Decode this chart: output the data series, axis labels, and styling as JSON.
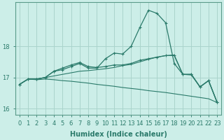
{
  "xlabel": "Humidex (Indice chaleur)",
  "bg_color": "#cceee8",
  "line_color": "#2a7a6a",
  "grid_color": "#aad4cc",
  "xlim": [
    -0.5,
    23.5
  ],
  "ylim": [
    15.8,
    19.4
  ],
  "yticks": [
    16,
    17,
    18
  ],
  "xticks": [
    0,
    1,
    2,
    3,
    4,
    5,
    6,
    7,
    8,
    9,
    10,
    11,
    12,
    13,
    14,
    15,
    16,
    17,
    18,
    19,
    20,
    21,
    22,
    23
  ],
  "series1": [
    16.78,
    16.95,
    16.95,
    17.0,
    17.2,
    17.25,
    17.35,
    17.45,
    17.3,
    17.3,
    17.6,
    17.78,
    17.75,
    18.0,
    18.6,
    19.15,
    19.05,
    18.75,
    17.45,
    17.1,
    17.1,
    16.7,
    16.9,
    16.2
  ],
  "series2": [
    16.78,
    16.95,
    16.95,
    17.0,
    17.2,
    17.3,
    17.4,
    17.48,
    17.35,
    17.32,
    17.35,
    17.4,
    17.4,
    17.45,
    17.55,
    17.6,
    17.65,
    17.7,
    17.72,
    17.1,
    17.1,
    16.7,
    16.9,
    16.2
  ],
  "series3": [
    16.78,
    16.95,
    16.95,
    17.0,
    17.05,
    17.1,
    17.15,
    17.2,
    17.22,
    17.25,
    17.28,
    17.32,
    17.38,
    17.42,
    17.5,
    17.58,
    17.65,
    17.7,
    17.7,
    17.1,
    17.08,
    16.7,
    16.9,
    16.2
  ],
  "series4": [
    16.78,
    16.95,
    16.93,
    16.95,
    16.93,
    16.9,
    16.88,
    16.85,
    16.82,
    16.78,
    16.75,
    16.72,
    16.68,
    16.65,
    16.62,
    16.58,
    16.55,
    16.52,
    16.48,
    16.44,
    16.4,
    16.36,
    16.32,
    16.2
  ]
}
